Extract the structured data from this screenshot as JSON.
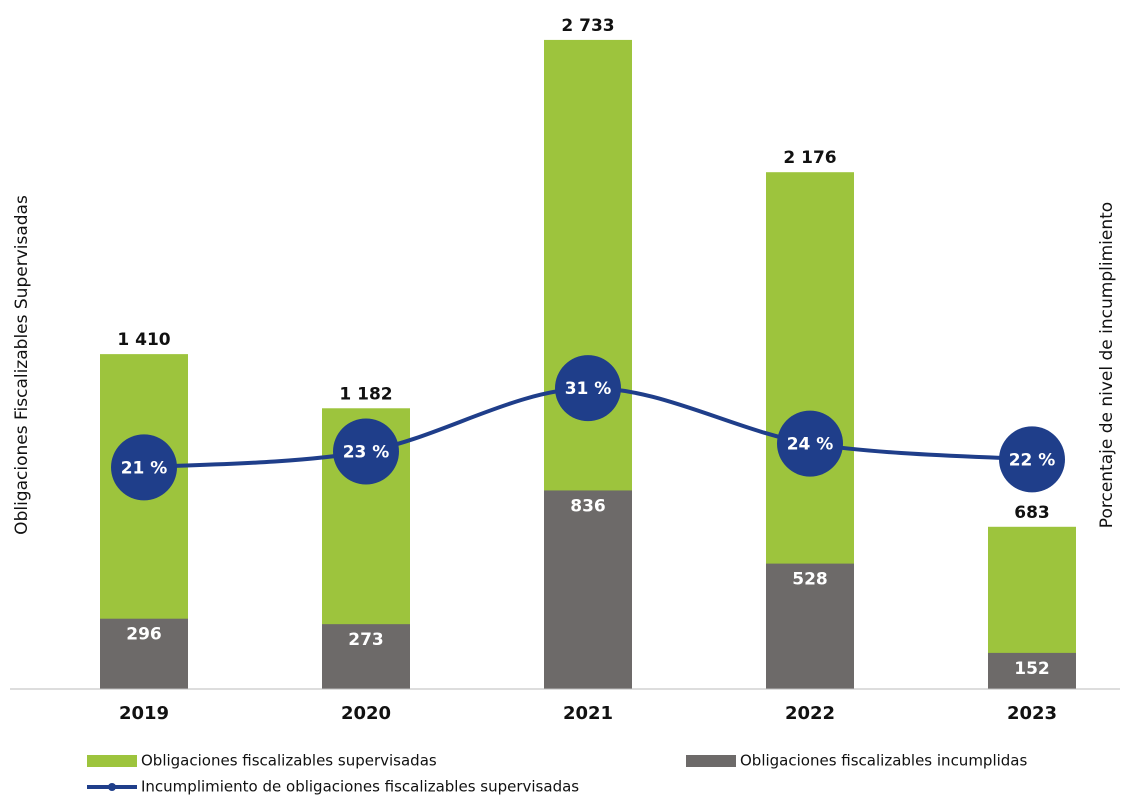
{
  "chart_data": {
    "type": "bar",
    "categories": [
      "2019",
      "2020",
      "2021",
      "2022",
      "2023"
    ],
    "ylabel": "Obligaciones Fiscalizables Supervisadas",
    "y2label": "Porcentaje de nivel de incumplimiento",
    "ylim": [
      0,
      2800
    ],
    "y2lim": [
      -7,
      77
    ],
    "series": [
      {
        "name": "Obligaciones fiscalizables supervisadas",
        "color": "#9dc43d",
        "values": [
          1410,
          1182,
          2733,
          2176,
          683
        ],
        "value_labels": [
          "1 410",
          "1 182",
          "2 733",
          "2 176",
          "683"
        ]
      },
      {
        "name": "Obligaciones fiscalizables incumplidas",
        "color": "#6d6a69",
        "values": [
          296,
          273,
          836,
          528,
          152
        ]
      },
      {
        "name": "Incumplimiento de obligaciones fiscalizables supervisadas",
        "color": "#1f3e8a",
        "type": "line",
        "axis": "y2",
        "values": [
          21,
          23,
          31,
          24,
          22
        ],
        "value_labels": [
          "21 %",
          "23 %",
          "31 %",
          "24 %",
          "22 %"
        ]
      }
    ]
  }
}
